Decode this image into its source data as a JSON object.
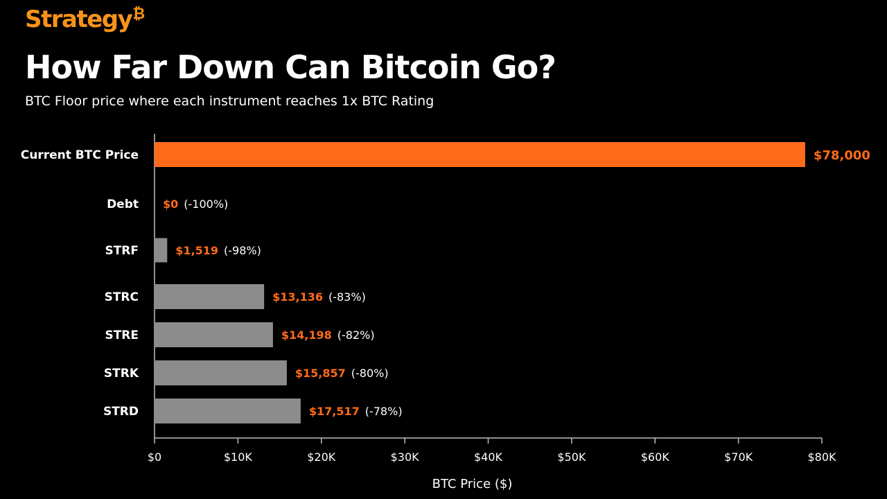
{
  "brand": {
    "name": "Strategy",
    "mark": "₿",
    "color": "#f7931a"
  },
  "header": {
    "title": "How Far Down Can Bitcoin Go?",
    "subtitle": "BTC Floor price where each instrument reaches 1x BTC Rating"
  },
  "chart_data": {
    "type": "bar",
    "orientation": "horizontal",
    "title": "How Far Down Can Bitcoin Go?",
    "subtitle": "BTC Floor price where each instrument reaches 1x BTC Rating",
    "xlabel": "BTC Price ($)",
    "ylabel": "",
    "xlim": [
      0,
      80000
    ],
    "x_ticks": [
      0,
      10000,
      20000,
      30000,
      40000,
      50000,
      60000,
      70000,
      80000
    ],
    "x_tick_labels": [
      "$0",
      "$10K",
      "$20K",
      "$30K",
      "$40K",
      "$50K",
      "$60K",
      "$70K",
      "$80K"
    ],
    "grid": false,
    "legend": "none",
    "bars": [
      {
        "category": "Current BTC Price",
        "value": 78000,
        "value_label": "$78,000",
        "pct_label": "",
        "color": "#ff6b1a"
      },
      {
        "category": "Debt",
        "value": 0,
        "value_label": "$0",
        "pct_label": "(-100%)",
        "color": "#8c8c8c"
      },
      {
        "category": "STRF",
        "value": 1519,
        "value_label": "$1,519",
        "pct_label": "(-98%)",
        "color": "#8c8c8c"
      },
      {
        "category": "STRC",
        "value": 13136,
        "value_label": "$13,136",
        "pct_label": "(-83%)",
        "color": "#8c8c8c"
      },
      {
        "category": "STRE",
        "value": 14198,
        "value_label": "$14,198",
        "pct_label": "(-82%)",
        "color": "#8c8c8c"
      },
      {
        "category": "STRK",
        "value": 15857,
        "value_label": "$15,857",
        "pct_label": "(-80%)",
        "color": "#8c8c8c"
      },
      {
        "category": "STRD",
        "value": 17517,
        "value_label": "$17,517",
        "pct_label": "(-78%)",
        "color": "#8c8c8c"
      }
    ],
    "colors": {
      "highlight": "#ff6b1a",
      "bar": "#8c8c8c",
      "value_label": "#ff6b1a",
      "axis": "#bfbfbf",
      "text": "#ffffff"
    }
  }
}
